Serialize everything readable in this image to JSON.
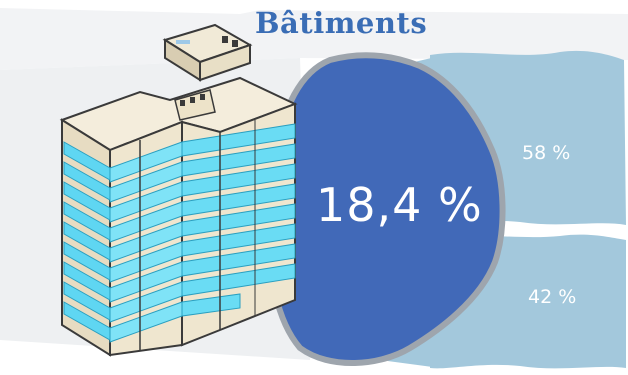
{
  "title": "Bâtiments",
  "main_value": "18,4 %",
  "segments": [
    {
      "label": "58 %",
      "value": 58
    },
    {
      "label": "42 %",
      "value": 42
    }
  ],
  "colors": {
    "title": "#3a6db5",
    "circle": "#4169b8",
    "circle_ring": "#9ea5ad",
    "band": "#a3c8dc",
    "background_shade": "#eef0f2",
    "glass": "#5fd6f2"
  },
  "icons": [
    "building-illustration"
  ]
}
